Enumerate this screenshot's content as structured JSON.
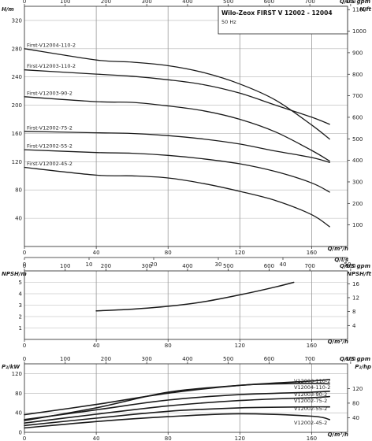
{
  "chart_data": [
    {
      "type": "line",
      "name_key": "head",
      "title": "Wilo-Zeox FIRST V 12002 - 12004",
      "subtitle": "50 Hz",
      "xlabel": "Q/m³/h",
      "ylabel": "H/m",
      "y2label": "H/ft",
      "xlim": [
        0,
        180
      ],
      "ylim": [
        0,
        340
      ],
      "x_ticks": [
        0,
        40,
        80,
        120,
        160
      ],
      "y_ticks": [
        40,
        80,
        120,
        160,
        200,
        240,
        280,
        320
      ],
      "y2_ticks": [
        100,
        200,
        300,
        400,
        500,
        600,
        700,
        800,
        900,
        1000,
        1100
      ],
      "top_axis": {
        "label": "Q/US gpm",
        "ticks": [
          0,
          100,
          200,
          300,
          400,
          500,
          600,
          700,
          800
        ]
      },
      "bottom_axis2": {
        "label": "Q/l/s",
        "ticks": [
          0,
          10,
          20,
          30,
          40,
          50
        ]
      },
      "series": [
        {
          "name": "First-V12004-110-2",
          "x": [
            0,
            40,
            60,
            80,
            100,
            120,
            140,
            160,
            170
          ],
          "y": [
            280,
            264,
            261,
            256,
            246,
            230,
            207,
            172,
            152
          ]
        },
        {
          "name": "First-V12003-110-2",
          "x": [
            0,
            40,
            60,
            80,
            100,
            120,
            140,
            160,
            170
          ],
          "y": [
            250,
            244,
            241,
            236,
            229,
            217,
            200,
            183,
            173
          ]
        },
        {
          "name": "First-V12003-90-2",
          "x": [
            0,
            40,
            60,
            80,
            100,
            120,
            140,
            160,
            170
          ],
          "y": [
            212,
            205,
            204,
            199,
            192,
            180,
            162,
            136,
            121
          ]
        },
        {
          "name": "First-V12002-75-2",
          "x": [
            0,
            40,
            60,
            80,
            100,
            120,
            140,
            160,
            170
          ],
          "y": [
            163,
            161,
            160,
            157,
            152,
            145,
            135,
            126,
            119
          ]
        },
        {
          "name": "First-V12002-55-2",
          "x": [
            0,
            40,
            60,
            80,
            100,
            120,
            140,
            160,
            170
          ],
          "y": [
            137,
            133,
            132,
            129,
            124,
            117,
            106,
            90,
            77
          ]
        },
        {
          "name": "First-V12002-45-2",
          "x": [
            0,
            40,
            60,
            80,
            100,
            120,
            140,
            160,
            170
          ],
          "y": [
            112,
            101,
            100,
            97,
            89,
            78,
            65,
            45,
            28
          ]
        }
      ]
    },
    {
      "type": "line",
      "name_key": "npsh",
      "xlabel": "Q/m³/h",
      "ylabel": "NPSH/m",
      "y2label": "NPSH/ft",
      "xlim": [
        0,
        180
      ],
      "ylim": [
        0,
        6
      ],
      "x_ticks": [
        0,
        40,
        80,
        120,
        160
      ],
      "y_ticks": [
        1,
        2,
        3,
        4,
        5
      ],
      "y2_ticks": [
        4,
        8,
        12,
        16
      ],
      "top_axis": {
        "label": "Q/US gpm",
        "ticks": [
          0,
          100,
          200,
          300,
          400,
          500,
          600,
          700,
          800
        ]
      },
      "series": [
        {
          "name": "",
          "x": [
            40,
            60,
            80,
            100,
            120,
            140,
            150
          ],
          "y": [
            2.5,
            2.65,
            2.9,
            3.3,
            3.9,
            4.6,
            5.0
          ]
        }
      ]
    },
    {
      "type": "line",
      "name_key": "power",
      "xlabel": "Q/m³/h",
      "ylabel": "P₂/kW",
      "y2label": "P₂/hp",
      "xlim": [
        0,
        180
      ],
      "ylim": [
        0,
        140
      ],
      "x_ticks": [
        0,
        40,
        80,
        120,
        160
      ],
      "y_ticks": [
        0,
        40,
        80,
        120
      ],
      "y2_ticks": [
        40,
        80,
        120
      ],
      "top_axis": {
        "label": "Q/US gpm",
        "ticks": [
          0,
          100,
          200,
          300,
          400,
          500,
          600,
          700,
          800
        ]
      },
      "series": [
        {
          "name": "V12003-110-2",
          "x": [
            0,
            40,
            80,
            120,
            160,
            170
          ],
          "y": [
            36,
            57,
            80,
            96,
            105,
            108
          ]
        },
        {
          "name": "V12004-110-2",
          "x": [
            0,
            40,
            80,
            120,
            140,
            160,
            170
          ],
          "y": [
            24,
            50,
            82,
            96,
            99,
            100,
            99
          ]
        },
        {
          "name": "V12003-90-2",
          "x": [
            0,
            40,
            80,
            120,
            160,
            170
          ],
          "y": [
            26,
            46,
            66,
            77,
            82,
            84
          ]
        },
        {
          "name": "V12002-75-2",
          "x": [
            0,
            40,
            80,
            120,
            160,
            170
          ],
          "y": [
            19,
            37,
            54,
            65,
            71,
            73
          ]
        },
        {
          "name": "V12002-55-2",
          "x": [
            0,
            40,
            80,
            120,
            160,
            170
          ],
          "y": [
            14,
            29,
            43,
            50,
            52,
            52
          ]
        },
        {
          "name": "V12002-45-2",
          "x": [
            0,
            40,
            80,
            120,
            160,
            170
          ],
          "y": [
            9,
            22,
            32,
            38,
            33,
            26
          ]
        }
      ]
    }
  ]
}
